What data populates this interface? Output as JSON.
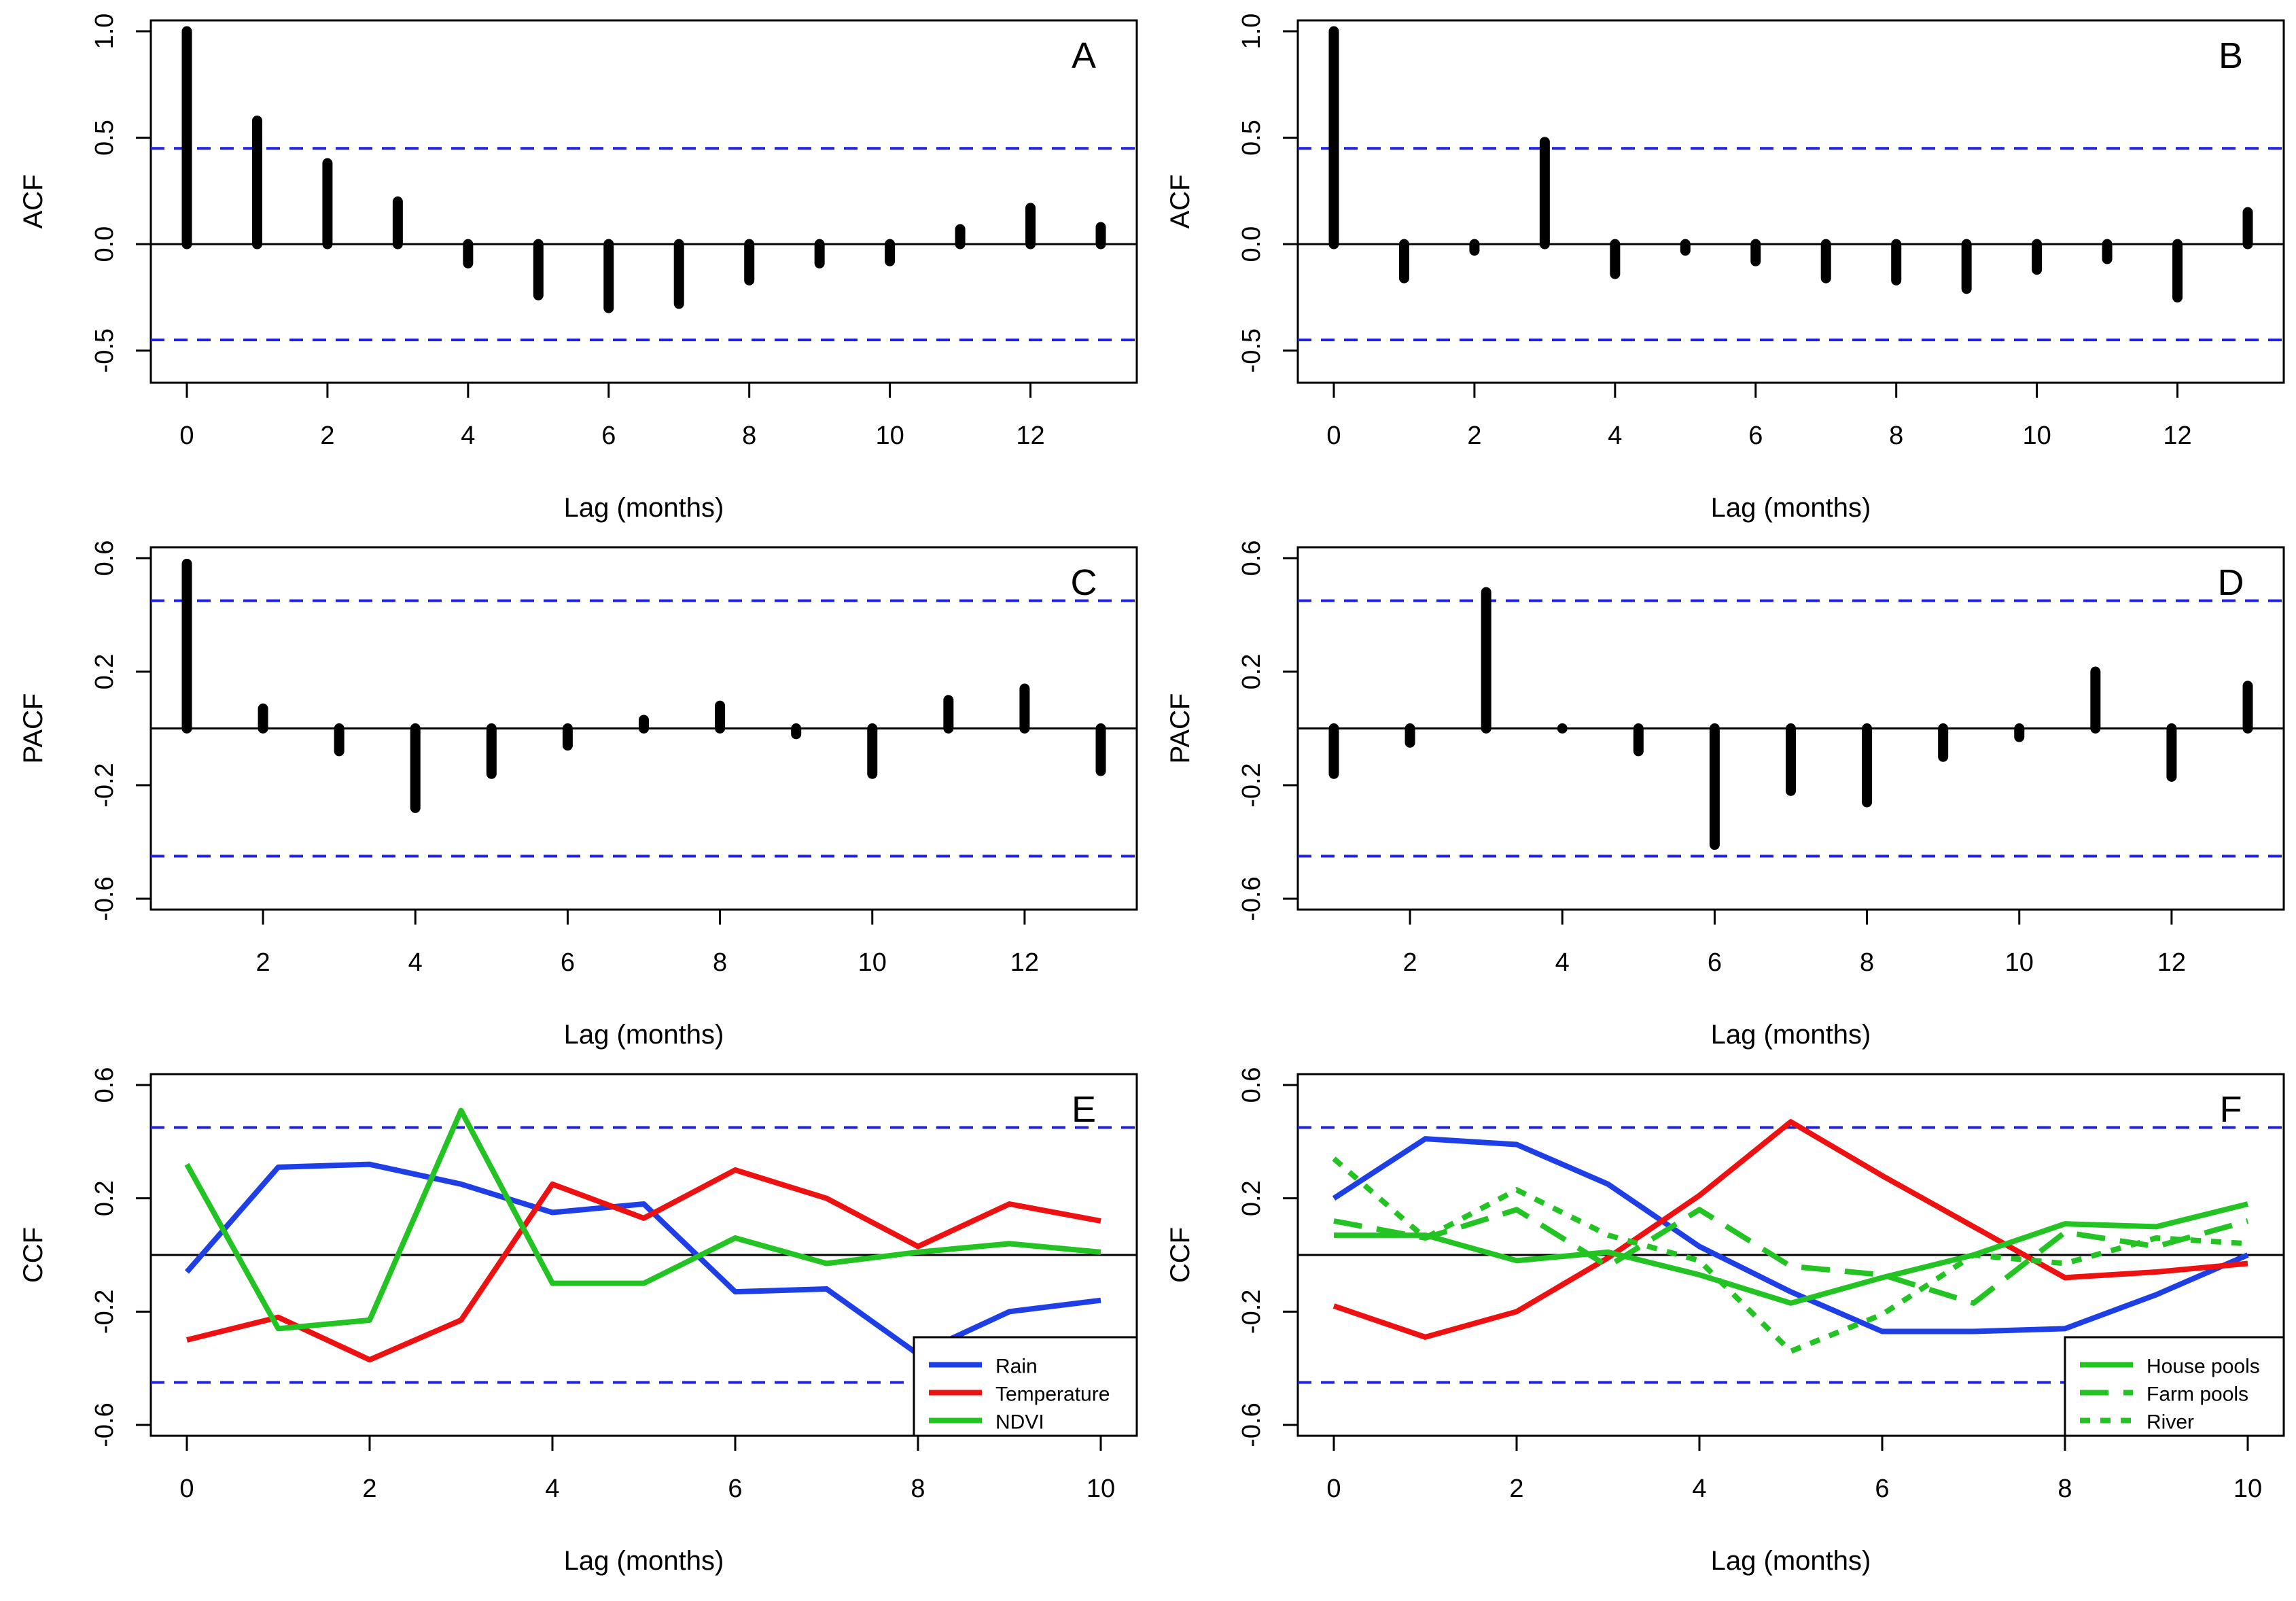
{
  "colors": {
    "bar": "#000000",
    "ci": "#1f1fe0",
    "rain": "#1f3fe6",
    "temperature": "#ee1111",
    "ndvi": "#22c322",
    "axis": "#000000"
  },
  "chart_data": [
    {
      "id": "A",
      "type": "bar",
      "subtype": "acf",
      "panel_label": "A",
      "xlabel": "Lag (months)",
      "ylabel": "ACF",
      "xlim": [
        0,
        13
      ],
      "ylim": [
        -0.6,
        1.0
      ],
      "ci": 0.45,
      "x_ticks": [
        0,
        2,
        4,
        6,
        8,
        10,
        12
      ],
      "y_ticks": [
        -0.5,
        0.0,
        0.5,
        1.0
      ],
      "y_tick_labels": [
        "-0.5",
        "0.0",
        "0.5",
        "1.0"
      ],
      "x": [
        0,
        1,
        2,
        3,
        4,
        5,
        6,
        7,
        8,
        9,
        10,
        11,
        12,
        13
      ],
      "values": [
        1.0,
        0.58,
        0.38,
        0.2,
        -0.09,
        -0.24,
        -0.3,
        -0.28,
        -0.17,
        -0.09,
        -0.08,
        0.07,
        0.17,
        0.08
      ]
    },
    {
      "id": "B",
      "type": "bar",
      "subtype": "acf",
      "panel_label": "B",
      "xlabel": "Lag (months)",
      "ylabel": "ACF",
      "xlim": [
        0,
        13
      ],
      "ylim": [
        -0.6,
        1.0
      ],
      "ci": 0.45,
      "x_ticks": [
        0,
        2,
        4,
        6,
        8,
        10,
        12
      ],
      "y_ticks": [
        -0.5,
        0.0,
        0.5,
        1.0
      ],
      "y_tick_labels": [
        "-0.5",
        "0.0",
        "0.5",
        "1.0"
      ],
      "x": [
        0,
        1,
        2,
        3,
        4,
        5,
        6,
        7,
        8,
        9,
        10,
        11,
        12,
        13
      ],
      "values": [
        1.0,
        -0.16,
        -0.03,
        0.48,
        -0.14,
        -0.03,
        -0.08,
        -0.16,
        -0.17,
        -0.21,
        -0.12,
        -0.07,
        -0.25,
        0.15
      ]
    },
    {
      "id": "C",
      "type": "bar",
      "subtype": "pacf",
      "panel_label": "C",
      "xlabel": "Lag (months)",
      "ylabel": "PACF",
      "xlim": [
        1,
        13
      ],
      "ylim": [
        -0.6,
        0.6
      ],
      "ci": 0.45,
      "x_ticks": [
        2,
        4,
        6,
        8,
        10,
        12
      ],
      "y_ticks": [
        -0.6,
        -0.2,
        0.2,
        0.6
      ],
      "y_tick_labels": [
        "-0.6",
        "-0.2",
        "0.2",
        "0.6"
      ],
      "x": [
        1,
        2,
        3,
        4,
        5,
        6,
        7,
        8,
        9,
        10,
        11,
        12,
        13
      ],
      "values": [
        0.58,
        0.07,
        -0.08,
        -0.28,
        -0.16,
        -0.06,
        0.03,
        0.08,
        -0.02,
        -0.16,
        0.1,
        0.14,
        -0.15
      ]
    },
    {
      "id": "D",
      "type": "bar",
      "subtype": "pacf",
      "panel_label": "D",
      "xlabel": "Lag (months)",
      "ylabel": "PACF",
      "xlim": [
        1,
        13
      ],
      "ylim": [
        -0.6,
        0.6
      ],
      "ci": 0.45,
      "x_ticks": [
        2,
        4,
        6,
        8,
        10,
        12
      ],
      "y_ticks": [
        -0.6,
        -0.2,
        0.2,
        0.6
      ],
      "y_tick_labels": [
        "-0.6",
        "-0.2",
        "0.2",
        "0.6"
      ],
      "x": [
        1,
        2,
        3,
        4,
        5,
        6,
        7,
        8,
        9,
        10,
        11,
        12,
        13
      ],
      "values": [
        -0.16,
        -0.05,
        0.48,
        0.0,
        -0.08,
        -0.41,
        -0.22,
        -0.26,
        -0.1,
        -0.03,
        0.2,
        -0.17,
        0.15
      ]
    },
    {
      "id": "E",
      "type": "line",
      "subtype": "ccf",
      "panel_label": "E",
      "xlabel": "Lag (months)",
      "ylabel": "CCF",
      "xlim": [
        0,
        10
      ],
      "ylim": [
        -0.6,
        0.6
      ],
      "ci": 0.45,
      "x_ticks": [
        0,
        2,
        4,
        6,
        8,
        10
      ],
      "y_ticks": [
        -0.6,
        -0.2,
        0.2,
        0.6
      ],
      "y_tick_labels": [
        "-0.6",
        "-0.2",
        "0.2",
        "0.6"
      ],
      "x": [
        0,
        1,
        2,
        3,
        4,
        5,
        6,
        7,
        8,
        9,
        10
      ],
      "legend_position": "bottom-right",
      "series": [
        {
          "name": "Rain",
          "color": "#1f3fe6",
          "style": "solid",
          "values": [
            -0.06,
            0.31,
            0.32,
            0.25,
            0.15,
            0.18,
            -0.13,
            -0.12,
            -0.35,
            -0.2,
            -0.16
          ]
        },
        {
          "name": "Temperature",
          "color": "#ee1111",
          "style": "solid",
          "values": [
            -0.3,
            -0.22,
            -0.37,
            -0.23,
            0.25,
            0.13,
            0.3,
            0.2,
            0.03,
            0.18,
            0.12
          ]
        },
        {
          "name": "NDVI",
          "color": "#22c322",
          "style": "solid",
          "values": [
            0.32,
            -0.26,
            -0.23,
            0.51,
            -0.1,
            -0.1,
            0.06,
            -0.03,
            0.01,
            0.04,
            0.01
          ]
        }
      ]
    },
    {
      "id": "F",
      "type": "line",
      "subtype": "ccf",
      "panel_label": "F",
      "xlabel": "Lag (months)",
      "ylabel": "CCF",
      "xlim": [
        0,
        10
      ],
      "ylim": [
        -0.6,
        0.6
      ],
      "ci": 0.45,
      "x_ticks": [
        0,
        2,
        4,
        6,
        8,
        10
      ],
      "y_ticks": [
        -0.6,
        -0.2,
        0.2,
        0.6
      ],
      "y_tick_labels": [
        "-0.6",
        "-0.2",
        "0.2",
        "0.6"
      ],
      "x": [
        0,
        1,
        2,
        3,
        4,
        5,
        6,
        7,
        8,
        9,
        10
      ],
      "legend_position": "bottom-right",
      "series": [
        {
          "name": "Rain",
          "color": "#1f3fe6",
          "style": "solid",
          "legend": false,
          "values": [
            0.2,
            0.41,
            0.39,
            0.25,
            0.03,
            -0.13,
            -0.27,
            -0.27,
            -0.26,
            -0.14,
            0.0
          ]
        },
        {
          "name": "Temperature",
          "color": "#ee1111",
          "style": "solid",
          "legend": false,
          "values": [
            -0.18,
            -0.29,
            -0.2,
            -0.01,
            0.21,
            0.47,
            0.28,
            0.1,
            -0.08,
            -0.06,
            -0.03
          ]
        },
        {
          "name": "House pools",
          "color": "#22c322",
          "style": "solid",
          "values": [
            0.07,
            0.07,
            -0.02,
            0.01,
            -0.07,
            -0.17,
            -0.08,
            0.0,
            0.11,
            0.1,
            0.18
          ]
        },
        {
          "name": "Farm pools",
          "color": "#22c322",
          "style": "dashed",
          "values": [
            0.12,
            0.06,
            0.16,
            -0.04,
            0.16,
            -0.04,
            -0.07,
            -0.17,
            0.08,
            0.03,
            0.12
          ]
        },
        {
          "name": "River",
          "color": "#22c322",
          "style": "dotted",
          "values": [
            0.34,
            0.06,
            0.23,
            0.07,
            -0.02,
            -0.34,
            -0.21,
            0.0,
            -0.03,
            0.06,
            0.04
          ]
        }
      ]
    }
  ]
}
